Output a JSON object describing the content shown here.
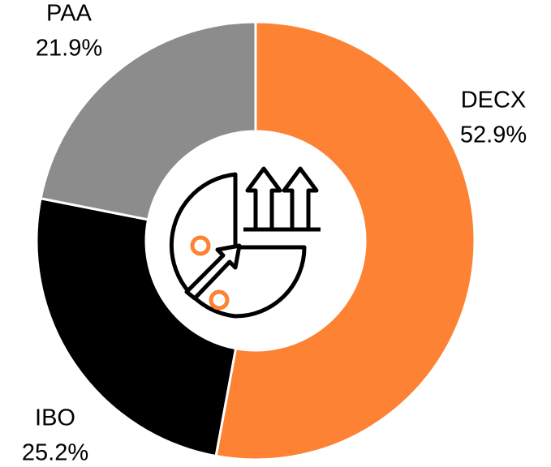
{
  "chart_data": {
    "type": "donut",
    "categories": [
      "DECX",
      "IBO",
      "PAA"
    ],
    "values": [
      52.9,
      25.2,
      21.9
    ],
    "value_labels": [
      "52.9%",
      "25.2%",
      "21.9%"
    ],
    "colors": [
      "#fd8234",
      "#000000",
      "#8c8c8c"
    ]
  }
}
